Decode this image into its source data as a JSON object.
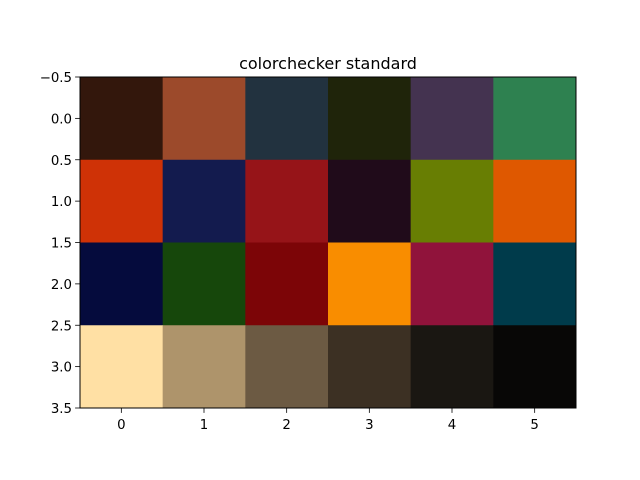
{
  "chart_data": {
    "type": "heatmap",
    "title": "colorchecker standard",
    "xlabel": "",
    "ylabel": "",
    "xlim": [
      -0.5,
      5.5
    ],
    "ylim": [
      3.5,
      -0.5
    ],
    "x_ticks": [
      0,
      1,
      2,
      3,
      4,
      5
    ],
    "x_tick_labels": [
      "0",
      "1",
      "2",
      "3",
      "4",
      "5"
    ],
    "y_ticks": [
      -0.5,
      0.0,
      0.5,
      1.0,
      1.5,
      2.0,
      2.5,
      3.0,
      3.5
    ],
    "y_tick_labels": [
      "−0.5",
      "0.0",
      "0.5",
      "1.0",
      "1.5",
      "2.0",
      "2.5",
      "3.0",
      "3.5"
    ],
    "grid": false,
    "rows": 4,
    "cols": 6,
    "cells": [
      [
        "#33170c",
        "#9c4a2b",
        "#22323f",
        "#1f240a",
        "#443350",
        "#2e8150"
      ],
      [
        "#cf3206",
        "#131b4e",
        "#961418",
        "#200b1a",
        "#687e03",
        "#df5800"
      ],
      [
        "#050b3d",
        "#16470b",
        "#7c0507",
        "#f98d00",
        "#90133b",
        "#003b4b"
      ],
      [
        "#ffe0a4",
        "#ae946b",
        "#6c5a43",
        "#3c3023",
        "#1a1712",
        "#080706"
      ]
    ]
  }
}
